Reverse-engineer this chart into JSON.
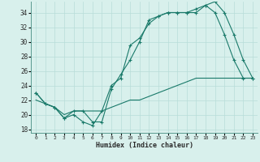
{
  "xlabel": "Humidex (Indice chaleur)",
  "bg_color": "#d8f0ec",
  "grid_color": "#b8ddd8",
  "line_color": "#1a7a6a",
  "xlim": [
    -0.5,
    23.5
  ],
  "ylim": [
    17.5,
    35.5
  ],
  "yticks": [
    18,
    20,
    22,
    24,
    26,
    28,
    30,
    32,
    34
  ],
  "xticks": [
    0,
    1,
    2,
    3,
    4,
    5,
    6,
    7,
    8,
    9,
    10,
    11,
    12,
    13,
    14,
    15,
    16,
    17,
    18,
    19,
    20,
    21,
    22,
    23
  ],
  "line1_x": [
    0,
    1,
    2,
    3,
    4,
    5,
    6,
    7,
    8,
    9,
    10,
    11,
    12,
    13,
    14,
    15,
    16,
    17,
    18,
    19,
    20,
    21,
    22,
    23
  ],
  "line1_y": [
    23,
    21.5,
    21,
    19.5,
    20,
    19,
    18.5,
    20.5,
    24,
    25,
    29.5,
    30.5,
    32.5,
    33.5,
    34,
    34,
    34,
    34,
    35,
    35.5,
    34,
    31,
    27.5,
    25
  ],
  "line2_x": [
    0,
    1,
    2,
    3,
    4,
    5,
    6,
    7,
    8,
    9,
    10,
    11,
    12,
    13,
    14,
    15,
    16,
    17,
    18,
    19,
    20,
    21,
    22,
    23
  ],
  "line2_y": [
    23,
    21.5,
    21,
    19.5,
    20.5,
    20.5,
    19,
    19,
    23.5,
    25.5,
    27.5,
    30,
    33,
    33.5,
    34,
    34,
    34,
    34.5,
    35,
    34,
    31,
    27.5,
    25,
    25
  ],
  "line3_x": [
    0,
    1,
    2,
    3,
    4,
    5,
    6,
    7,
    8,
    9,
    10,
    11,
    12,
    13,
    14,
    15,
    16,
    17,
    18,
    19,
    20,
    21,
    22,
    23
  ],
  "line3_y": [
    22,
    21.5,
    21,
    20,
    20.5,
    20.5,
    20.5,
    20.5,
    21,
    21.5,
    22,
    22,
    22.5,
    23,
    23.5,
    24,
    24.5,
    25,
    25,
    25,
    25,
    25,
    25,
    25
  ]
}
